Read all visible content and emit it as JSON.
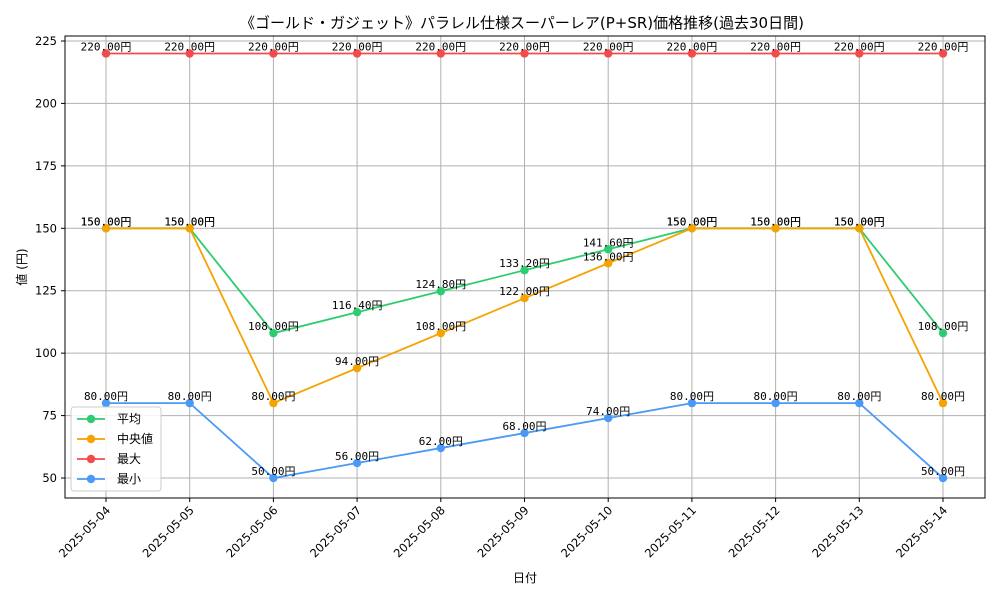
{
  "chart_data": {
    "type": "line",
    "title": "《ゴールド・ガジェット》パラレル仕様スーパーレア(P+SR)価格推移(過去30日間)",
    "xlabel": "日付",
    "ylabel": "値 (円)",
    "categories": [
      "2025-05-04",
      "2025-05-05",
      "2025-05-06",
      "2025-05-07",
      "2025-05-08",
      "2025-05-09",
      "2025-05-10",
      "2025-05-11",
      "2025-05-12",
      "2025-05-13",
      "2025-05-14"
    ],
    "ylim": [
      42,
      227
    ],
    "yticks": [
      50,
      75,
      100,
      125,
      150,
      175,
      200,
      225
    ],
    "grid": true,
    "legend_position": "lower-left",
    "label_suffix": "円",
    "series": [
      {
        "name": "平均",
        "color": "#2ecc71",
        "values": [
          150.0,
          150.0,
          108.0,
          116.4,
          124.8,
          133.2,
          141.6,
          150.0,
          150.0,
          150.0,
          108.0
        ]
      },
      {
        "name": "中央値",
        "color": "#f5a300",
        "values": [
          150.0,
          150.0,
          80.0,
          94.0,
          108.0,
          122.0,
          136.0,
          150.0,
          150.0,
          150.0,
          80.0
        ]
      },
      {
        "name": "最大",
        "color": "#f24b4b",
        "values": [
          220.0,
          220.0,
          220.0,
          220.0,
          220.0,
          220.0,
          220.0,
          220.0,
          220.0,
          220.0,
          220.0
        ]
      },
      {
        "name": "最小",
        "color": "#4a9af5",
        "values": [
          80.0,
          80.0,
          50.0,
          56.0,
          62.0,
          68.0,
          74.0,
          80.0,
          80.0,
          80.0,
          50.0
        ]
      }
    ]
  }
}
